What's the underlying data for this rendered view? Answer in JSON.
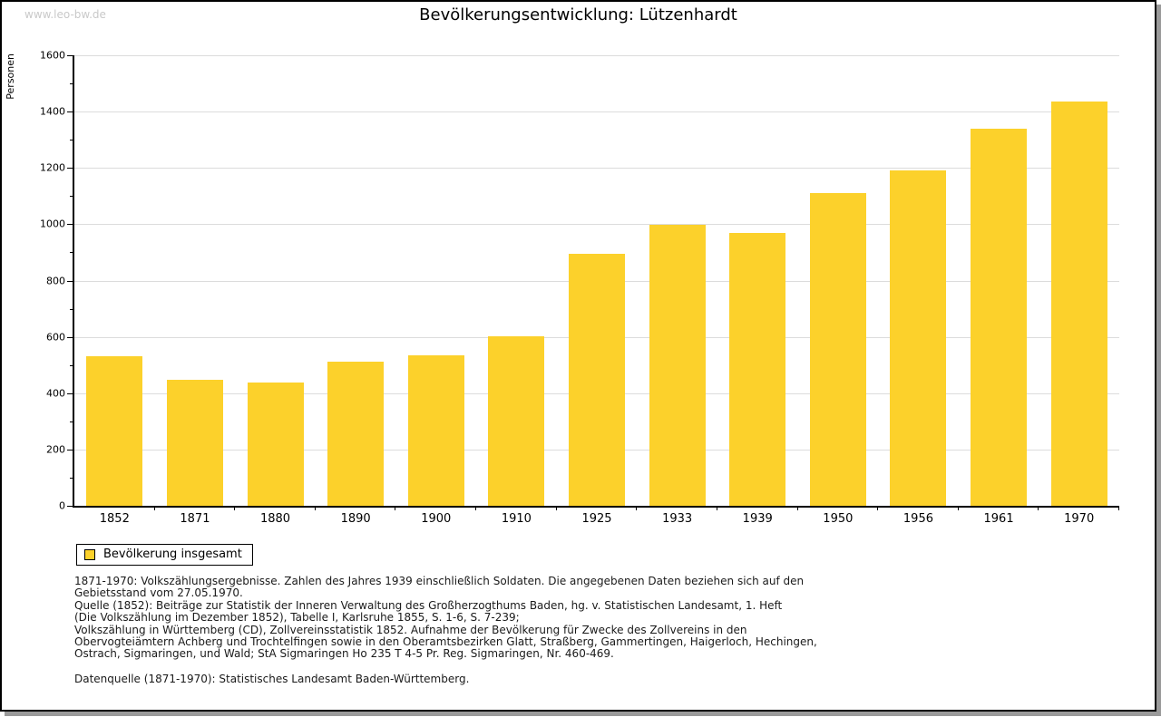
{
  "watermark": "www.leo-bw.de",
  "title": "Bevölkerungsentwicklung: Lützenhardt",
  "chart_data": {
    "type": "bar",
    "title": "Bevölkerungsentwicklung: Lützenhardt",
    "xlabel": "",
    "ylabel": "Personen",
    "categories": [
      "1852",
      "1871",
      "1880",
      "1890",
      "1900",
      "1910",
      "1925",
      "1933",
      "1939",
      "1950",
      "1956",
      "1961",
      "1970"
    ],
    "values": [
      530,
      447,
      438,
      511,
      533,
      603,
      895,
      997,
      970,
      1110,
      1191,
      1340,
      1436
    ],
    "ylim": [
      0,
      1600
    ],
    "ytick_major_step": 200,
    "ytick_minor_step": 100,
    "grid": "horizontal-major",
    "bar_color": "#fcd12b",
    "legend_position": "bottom-left",
    "legend_entries": [
      {
        "label": "Bevölkerung insgesamt",
        "color": "#fcd12b"
      }
    ]
  },
  "legend": {
    "label": "Bevölkerung insgesamt"
  },
  "footer": {
    "lines": [
      "1871-1970: Volkszählungsergebnisse. Zahlen des Jahres 1939 einschließlich Soldaten. Die angegebenen Daten beziehen sich auf den",
      "Gebietsstand vom 27.05.1970.",
      "Quelle (1852): Beiträge zur Statistik der Inneren Verwaltung des Großherzogthums Baden, hg. v. Statistischen Landesamt, 1. Heft",
      "(Die Volkszählung im Dezember 1852), Tabelle I, Karlsruhe 1855, S. 1-6, S. 7-239;",
      "Volkszählung in Württemberg (CD), Zollvereinsstatistik 1852. Aufnahme der Bevölkerung für Zwecke des Zollvereins in den",
      "Obervogteiämtern Achberg und Trochtelfingen sowie in den Oberamtsbezirken Glatt, Straßberg, Gammertingen, Haigerloch, Hechingen,",
      "Ostrach, Sigmaringen, und Wald; StA Sigmaringen Ho 235 T 4-5 Pr. Reg. Sigmaringen, Nr. 460-469."
    ],
    "datasource": "Datenquelle (1871-1970): Statistisches Landesamt Baden-Württemberg."
  }
}
